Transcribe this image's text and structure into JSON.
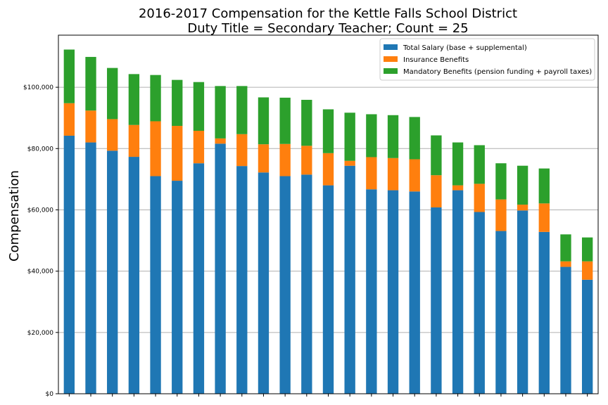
{
  "chart_data": {
    "type": "bar",
    "stacked": true,
    "title": [
      "2016-2017 Compensation for the Kettle Falls School District",
      "Duty Title = Secondary Teacher; Count = 25"
    ],
    "xlabel": "",
    "ylabel": "Compensation",
    "ylim": [
      0,
      117000
    ],
    "yticks": [
      0,
      20000,
      40000,
      60000,
      80000,
      100000
    ],
    "ytick_labels": [
      "$0",
      "$20,000",
      "$40,000",
      "$60,000",
      "$80,000",
      "$100,000"
    ],
    "grid": "y",
    "legend_position": "top-right",
    "series": [
      {
        "name": "Total Salary (base + supplemental)",
        "color": "#1f77b4",
        "values": [
          84200,
          82000,
          79300,
          77300,
          71000,
          69500,
          75200,
          81600,
          74300,
          72200,
          71000,
          71500,
          68000,
          74400,
          66700,
          66400,
          66000,
          60800,
          66400,
          59300,
          53100,
          59800,
          52800,
          41400,
          37200
        ]
      },
      {
        "name": "Insurance Benefits",
        "color": "#ff7f0e",
        "values": [
          10600,
          10400,
          10300,
          10400,
          17900,
          17900,
          10600,
          1700,
          10400,
          9200,
          10500,
          9400,
          10500,
          1600,
          10500,
          10500,
          10500,
          10500,
          1600,
          9200,
          10300,
          1900,
          9300,
          1800,
          6000
        ]
      },
      {
        "name": "Mandatory Benefits (pension funding + payroll taxes)",
        "color": "#2ca02c",
        "values": [
          17500,
          17500,
          16700,
          16600,
          15100,
          15000,
          15900,
          17100,
          15700,
          15300,
          15100,
          15000,
          14300,
          15700,
          14000,
          14000,
          13800,
          13000,
          14000,
          12600,
          11800,
          12700,
          11400,
          8800,
          7800
        ]
      }
    ]
  }
}
